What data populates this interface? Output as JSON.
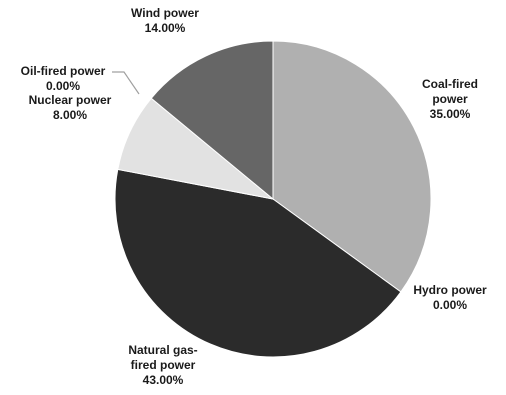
{
  "chart_data": {
    "type": "pie",
    "title": "",
    "slices": [
      {
        "name": "Coal-fired power",
        "name_lines": [
          "Coal-fired",
          "power"
        ],
        "value": 35.0,
        "label": "35.00%",
        "color": "#b0b0b0"
      },
      {
        "name": "Hydro power",
        "name_lines": [
          "Hydro power"
        ],
        "value": 0.0,
        "label": "0.00%",
        "color": "#f0f0f0"
      },
      {
        "name": "Natural gas-fired power",
        "name_lines": [
          "Natural gas-",
          "fired power"
        ],
        "value": 43.0,
        "label": "43.00%",
        "color": "#2b2b2b"
      },
      {
        "name": "Nuclear power",
        "name_lines": [
          "Nuclear power"
        ],
        "value": 8.0,
        "label": "8.00%",
        "color": "#e2e2e2"
      },
      {
        "name": "Oil-fired power",
        "name_lines": [
          "Oil-fired power"
        ],
        "value": 0.0,
        "label": "0.00%",
        "color": "#7a7a7a"
      },
      {
        "name": "Wind power",
        "name_lines": [
          "Wind power"
        ],
        "value": 14.0,
        "label": "14.00%",
        "color": "#666666"
      }
    ],
    "legend": "none",
    "start_angle": "12 o'clock",
    "direction": "clockwise"
  }
}
